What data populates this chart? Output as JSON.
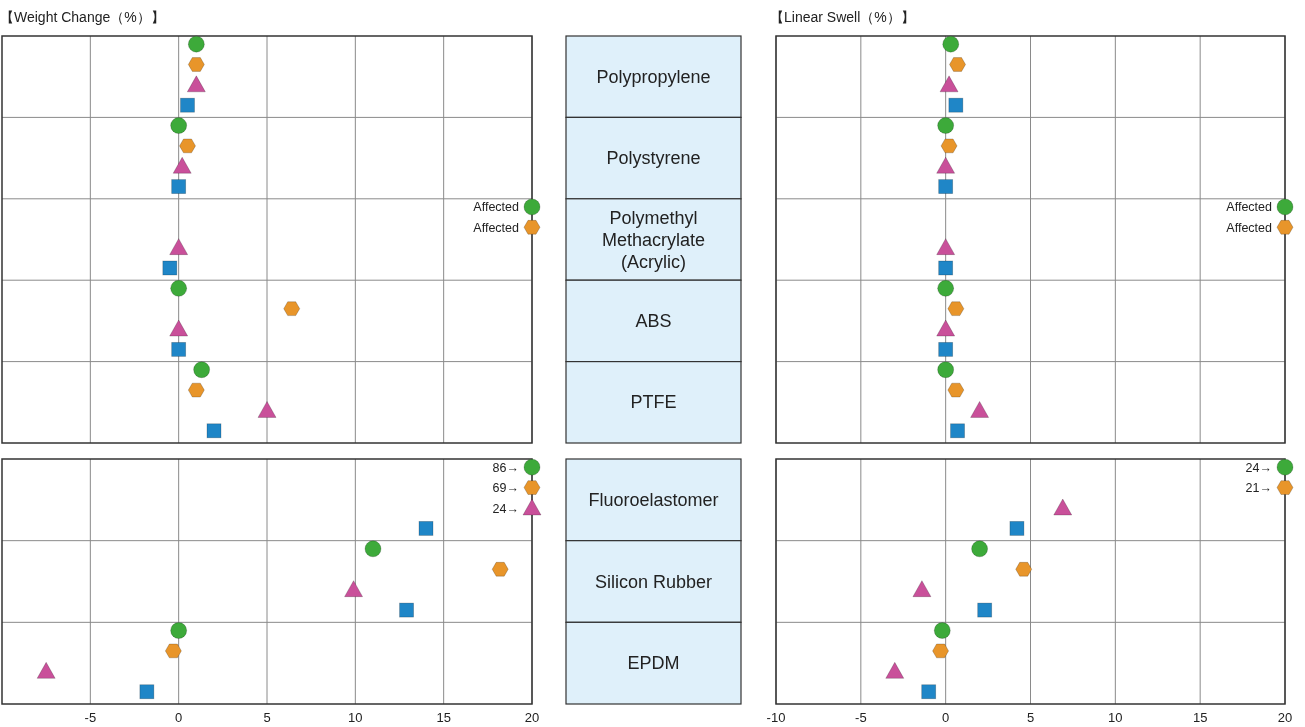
{
  "chart_data": [
    {
      "type": "scatter",
      "orientation": "horizontal",
      "title": "【Weight Change（%）】",
      "categories": [
        "Polypropylene",
        "Polystyrene",
        "Polymethyl\nMethacrylate\n(Acrylic)",
        "ABS",
        "PTFE"
      ],
      "series": [
        {
          "color": "#3daa3a",
          "marker": "circle",
          "values": [
            1.0,
            0,
            20,
            0,
            1.3
          ],
          "value_labels": [
            null,
            null,
            "Affected",
            null,
            null
          ]
        },
        {
          "color": "#e8952a",
          "values": [
            1.0,
            0.5,
            20,
            6.4,
            1.0
          ],
          "value_labels": [
            null,
            null,
            "Affected",
            null,
            null
          ]
        },
        {
          "color": "#c9509a",
          "marker": "triangle",
          "values": [
            1.0,
            0.2,
            0,
            0,
            5.0
          ]
        },
        {
          "color": "#1f86c7",
          "marker": "square",
          "values": [
            0.5,
            0,
            -0.5,
            0,
            2.0
          ]
        }
      ],
      "xlim": [
        -10,
        20
      ],
      "xticks": [
        -5,
        0,
        5,
        10,
        15,
        20
      ],
      "grid": true,
      "tick_labels": "y"
    },
    {
      "type": "scatter",
      "orientation": "horizontal",
      "categories": [
        "Fluoroelastomer",
        "Silicon Rubber",
        "EPDM"
      ],
      "series": [
        {
          "color": "#3daa3a",
          "marker": "circle",
          "values": [
            20,
            11.0,
            0
          ]
        },
        {
          "color": "#e8952a",
          "values": [
            20,
            18.2,
            -0.3
          ]
        },
        {
          "color": "#c9509a",
          "marker": "triangle",
          "values": [
            20,
            9.9,
            -7.5
          ]
        },
        {
          "color": "#1f86c7",
          "marker": "square",
          "values": [
            14.0,
            12.9,
            -1.8
          ]
        }
      ],
      "xlim": [
        -10,
        20
      ],
      "xticks": [
        -5,
        0,
        5,
        10,
        15,
        20
      ],
      "grid": true,
      "annotations": [
        "86→",
        "69→",
        "24→"
      ]
    },
    {
      "type": "scatter",
      "orientation": "horizontal",
      "title": "【Linear Swell（%）】",
      "categories": [
        null,
        null,
        null,
        null,
        null
      ],
      "series": [
        {
          "color": "#3daa3a",
          "marker": "circle",
          "values": [
            0.3,
            0,
            20,
            0,
            0
          ],
          "value_labels": [
            null,
            null,
            "Affected",
            null,
            null
          ]
        },
        {
          "color": "#e8952a",
          "values": [
            0.7,
            0.2,
            20,
            0.6,
            0.6
          ],
          "value_labels": [
            null,
            null,
            "Affected",
            null,
            null
          ]
        },
        {
          "color": "#c9509a",
          "marker": "triangle",
          "values": [
            0.2,
            0,
            0,
            0,
            2.0
          ]
        },
        {
          "color": "#1f86c7",
          "marker": "square",
          "values": [
            0.6,
            0,
            0,
            0,
            0.7
          ]
        }
      ],
      "xlim": [
        -10,
        20
      ],
      "xticks": [
        -10,
        -5,
        0,
        5,
        10,
        15,
        20
      ],
      "grid": true,
      "tick_labels": false
    },
    {
      "type": "scatter",
      "orientation": "horizontal",
      "categories": [
        null,
        null,
        null
      ],
      "series": [
        {
          "color": "#3daa3a",
          "marker": "circle",
          "values": [
            20,
            2.0,
            -0.2
          ]
        },
        {
          "color": "#e8952a",
          "values": [
            20,
            4.6,
            -0.3
          ]
        },
        {
          "color": "#c9509a",
          "marker": "triangle",
          "values": [
            6.9,
            -1.4,
            -3.0
          ]
        },
        {
          "color": "#1f86c7",
          "marker": "square",
          "values": [
            4.2,
            2.3,
            -1.0
          ]
        }
      ],
      "xlim": [
        -10,
        20
      ],
      "xticks": [
        -10,
        -5,
        0,
        5,
        10,
        15,
        20
      ],
      "grid": true,
      "tick_labels": "x",
      "annotations": [
        "24→",
        "21→"
      ]
    }
  ]
}
